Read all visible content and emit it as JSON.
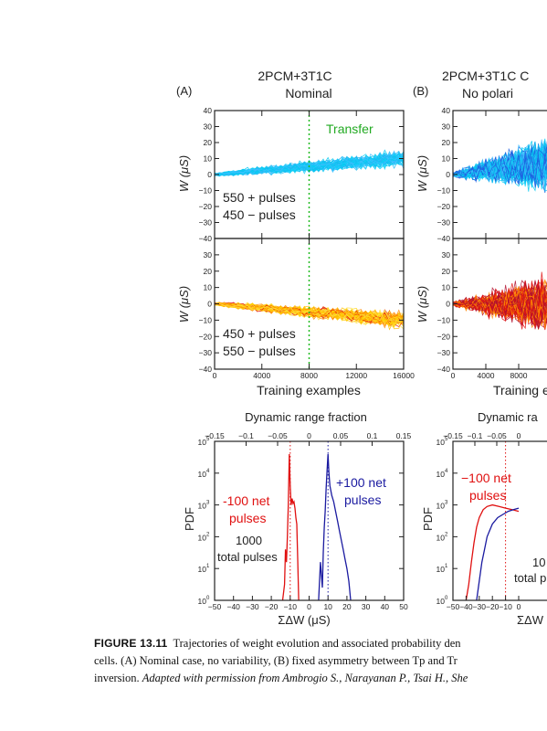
{
  "figure": {
    "panel_a": {
      "letter": "(A)",
      "title_line1": "2PCM+3T1C",
      "title_line2": "Nominal",
      "transfer_label": "Transfer",
      "top_annot_line1": "550 + pulses",
      "top_annot_line2": "450 − pulses",
      "bottom_annot_line1": "450 + pulses",
      "bottom_annot_line2": "550 − pulses",
      "ylabel": "W (μS)",
      "xlabel": "Training examples",
      "pdf_title": "Dynamic range fraction",
      "pdf_ylabel": "PDF",
      "pdf_xlabel": "ΣΔW (μS)",
      "neg_label_line1": "-100 net",
      "neg_label_line2": "pulses",
      "pos_label_line1": "+100 net",
      "pos_label_line2": "pulses",
      "total_line1": "1000",
      "total_line2": "total pulses"
    },
    "panel_b": {
      "letter": "(B)",
      "title_line1": "2PCM+3T1C C",
      "title_line2": "No polari",
      "ylabel": "W (μS)",
      "xlabel": "Training e",
      "pdf_title": "Dynamic ra",
      "pdf_ylabel": "PDF",
      "pdf_xlabel": "ΣΔW",
      "neg_label_line1": "−100 net",
      "neg_label_line2": "pulses",
      "total_line1": "10",
      "total_line2": "total p"
    },
    "colors": {
      "cyan": "#00c8f0",
      "blue_traj": "#1e5fe0",
      "yellow": "#ffd400",
      "orange": "#ff8800",
      "red": "#e01010",
      "navy": "#1a1aa0",
      "green": "#22bb22",
      "text": "#222222"
    }
  },
  "caption": {
    "label": "FIGURE 13.11",
    "line1": "Trajectories of weight evolution and associated probability den",
    "line2": "cells. (A) Nominal case, no variability, (B) fixed asymmetry between Tp and Tr",
    "line3_plain": "inversion.",
    "line3_italic": "Adapted with permission from Ambrogio S., Narayanan P., Tsai H., She"
  },
  "chart_data": [
    {
      "type": "line",
      "panel": "A-top",
      "x_ticks": [
        0,
        4000,
        8000,
        12000,
        16000
      ],
      "y_ticks": [
        -40,
        -30,
        -20,
        -10,
        0,
        10,
        20,
        30,
        40
      ],
      "xlim": [
        0,
        16000
      ],
      "ylim": [
        -40,
        40
      ],
      "transfer_x": 8000,
      "series": [
        {
          "x": [
            0,
            16000
          ],
          "y": [
            0,
            10
          ]
        }
      ]
    },
    {
      "type": "line",
      "panel": "A-bottom",
      "x_ticks": [
        0,
        4000,
        8000,
        12000,
        16000
      ],
      "y_ticks": [
        -40,
        -30,
        -20,
        -10,
        0,
        10,
        20,
        30
      ],
      "xlim": [
        0,
        16000
      ],
      "ylim": [
        -40,
        40
      ],
      "transfer_x": 8000,
      "series": [
        {
          "x": [
            0,
            16000
          ],
          "y": [
            0,
            -10
          ]
        }
      ]
    },
    {
      "type": "line",
      "panel": "A-pdf",
      "x_ticks": [
        -50,
        -40,
        -30,
        -20,
        -10,
        0,
        10,
        20,
        30,
        40,
        50
      ],
      "top_ticks": [
        -0.15,
        -0.1,
        -0.05,
        0,
        0.05,
        0.1,
        0.15
      ],
      "y_ticks_exp": [
        0,
        1,
        2,
        3,
        4,
        5
      ],
      "xlim": [
        -50,
        50
      ],
      "ylim_log10": [
        0,
        5
      ],
      "series": [
        {
          "name": "-100 net pulses",
          "peak_x": -10,
          "peak_log10": 4.6
        },
        {
          "name": "+100 net pulses",
          "peak_x": 10,
          "peak_log10": 4.6
        }
      ]
    },
    {
      "type": "line",
      "panel": "B-top",
      "x_ticks": [
        0,
        4000,
        8000
      ],
      "y_ticks": [
        -40,
        -30,
        -20,
        -10,
        0,
        10,
        20,
        30,
        40
      ],
      "xlim": [
        0,
        16000
      ],
      "ylim": [
        -40,
        40
      ]
    },
    {
      "type": "line",
      "panel": "B-bottom",
      "x_ticks": [
        0,
        4000,
        8000
      ],
      "y_ticks": [
        -40,
        -30,
        -20,
        -10,
        0,
        10,
        20,
        30
      ],
      "xlim": [
        0,
        16000
      ],
      "ylim": [
        -40,
        40
      ]
    },
    {
      "type": "line",
      "panel": "B-pdf",
      "x_ticks": [
        -50,
        -40,
        -30,
        -20,
        -10,
        0
      ],
      "top_ticks": [
        -0.15,
        -0.1,
        -0.05,
        0
      ],
      "y_ticks_exp": [
        0,
        1,
        2,
        3,
        4,
        5
      ],
      "xlim": [
        -50,
        50
      ],
      "ylim_log10": [
        0,
        5
      ]
    }
  ]
}
